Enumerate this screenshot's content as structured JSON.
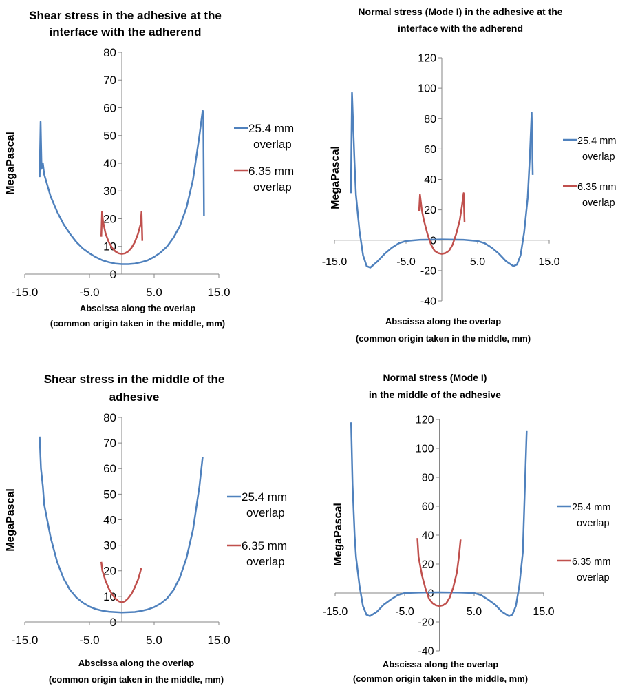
{
  "chart_data": [
    {
      "type": "line",
      "title": [
        "Shear stress  in the adhesive at the",
        "interface with the adherend"
      ],
      "xlabel": [
        "Abscissa along the overlap",
        "(common origin taken in the middle, mm)"
      ],
      "ylabel": "MegaPascal",
      "xlim": [
        -15,
        15
      ],
      "ylim": [
        0,
        80
      ],
      "xticks": [
        "-15.0",
        "-5.0",
        "5.0",
        "15.0"
      ],
      "yticks": [
        "0",
        "10",
        "20",
        "30",
        "40",
        "50",
        "60",
        "70",
        "80"
      ],
      "legend": "right",
      "series": [
        {
          "name": [
            "25.4 mm",
            "overlap"
          ],
          "color": "#4f81bd",
          "points": [
            [
              -12.7,
              35
            ],
            [
              -12.55,
              55
            ],
            [
              -12.4,
              38
            ],
            [
              -12.2,
              40
            ],
            [
              -12.0,
              36
            ],
            [
              -11.0,
              28
            ],
            [
              -10.0,
              22.5
            ],
            [
              -9.0,
              18
            ],
            [
              -8.0,
              14.5
            ],
            [
              -7.0,
              11.5
            ],
            [
              -6.0,
              9.2
            ],
            [
              -5.0,
              7.5
            ],
            [
              -4.0,
              6.1
            ],
            [
              -3.0,
              5.0
            ],
            [
              -2.0,
              4.3
            ],
            [
              -1.0,
              3.8
            ],
            [
              0.0,
              3.6
            ],
            [
              1.0,
              3.6
            ],
            [
              2.0,
              3.8
            ],
            [
              3.0,
              4.3
            ],
            [
              4.0,
              5.0
            ],
            [
              5.0,
              6.2
            ],
            [
              6.0,
              7.8
            ],
            [
              7.0,
              10.0
            ],
            [
              8.0,
              13.2
            ],
            [
              9.0,
              17.5
            ],
            [
              10.0,
              24.0
            ],
            [
              11.0,
              34.0
            ],
            [
              12.0,
              50.0
            ],
            [
              12.5,
              59
            ],
            [
              12.6,
              58
            ],
            [
              12.7,
              21
            ]
          ]
        },
        {
          "name": [
            "6.35 mm",
            "overlap"
          ],
          "color": "#c0504d",
          "points": [
            [
              -3.17,
              13.5
            ],
            [
              -3.05,
              22.5
            ],
            [
              -2.9,
              19
            ],
            [
              -2.5,
              14.5
            ],
            [
              -2.0,
              11.5
            ],
            [
              -1.5,
              9.5
            ],
            [
              -1.0,
              8.2
            ],
            [
              -0.5,
              7.5
            ],
            [
              0.0,
              7.3
            ],
            [
              0.5,
              7.5
            ],
            [
              1.0,
              8.2
            ],
            [
              1.5,
              9.5
            ],
            [
              2.0,
              11.5
            ],
            [
              2.5,
              14.5
            ],
            [
              2.9,
              18
            ],
            [
              3.05,
              22.5
            ],
            [
              3.17,
              12
            ]
          ]
        }
      ]
    },
    {
      "type": "line",
      "title": [
        "Normal stress (Mode I) in the adhesive at the",
        "interface with the adherend"
      ],
      "xlabel": [
        "Abscissa along the overlap",
        "(common origin taken in the middle, mm)"
      ],
      "ylabel": "MegaPascal",
      "xlim": [
        -15,
        15
      ],
      "ylim": [
        -40,
        120
      ],
      "xticks": [
        "-15.0",
        "-5.0",
        "5.0",
        "15.0"
      ],
      "yticks": [
        "-40",
        "-20",
        "0",
        "20",
        "40",
        "60",
        "80",
        "100",
        "120"
      ],
      "legend": "right",
      "series": [
        {
          "name": [
            "25.4 mm",
            "overlap"
          ],
          "color": "#4f81bd",
          "points": [
            [
              -12.7,
              31
            ],
            [
              -12.55,
              97
            ],
            [
              -12.4,
              78
            ],
            [
              -12.2,
              52
            ],
            [
              -12.0,
              30
            ],
            [
              -11.5,
              6
            ],
            [
              -11.0,
              -10
            ],
            [
              -10.5,
              -17
            ],
            [
              -10.0,
              -18
            ],
            [
              -9.0,
              -14
            ],
            [
              -8.0,
              -9
            ],
            [
              -7.0,
              -5
            ],
            [
              -6.0,
              -2
            ],
            [
              -5.0,
              -0.5
            ],
            [
              -3.0,
              0.3
            ],
            [
              0.0,
              0.5
            ],
            [
              3.0,
              0.3
            ],
            [
              5.0,
              -0.5
            ],
            [
              6.0,
              -2
            ],
            [
              7.0,
              -5
            ],
            [
              8.0,
              -9
            ],
            [
              9.0,
              -14
            ],
            [
              10.0,
              -17
            ],
            [
              10.5,
              -16
            ],
            [
              11.0,
              -10
            ],
            [
              11.5,
              5
            ],
            [
              12.0,
              28
            ],
            [
              12.3,
              55
            ],
            [
              12.55,
              84
            ],
            [
              12.7,
              43
            ]
          ]
        },
        {
          "name": [
            "6.35 mm",
            "overlap"
          ],
          "color": "#c0504d",
          "points": [
            [
              -3.17,
              19
            ],
            [
              -3.05,
              30
            ],
            [
              -2.8,
              20
            ],
            [
              -2.5,
              13
            ],
            [
              -2.0,
              4
            ],
            [
              -1.5,
              -3
            ],
            [
              -1.0,
              -7
            ],
            [
              -0.5,
              -8.5
            ],
            [
              0.0,
              -9
            ],
            [
              0.5,
              -8.5
            ],
            [
              1.0,
              -7
            ],
            [
              1.5,
              -3
            ],
            [
              2.0,
              4
            ],
            [
              2.5,
              13
            ],
            [
              2.8,
              22
            ],
            [
              3.05,
              31
            ],
            [
              3.17,
              12
            ]
          ]
        }
      ]
    },
    {
      "type": "line",
      "title": [
        "Shear stress  in the middle of the",
        "adhesive"
      ],
      "xlabel": [
        "Abscissa along the overlap",
        "(common origin taken in the middle, mm)"
      ],
      "ylabel": "MegaPascal",
      "xlim": [
        -15,
        15
      ],
      "ylim": [
        0,
        80
      ],
      "xticks": [
        "-15.0",
        "-5.0",
        "5.0",
        "15.0"
      ],
      "yticks": [
        "0",
        "10",
        "20",
        "30",
        "40",
        "50",
        "60",
        "70",
        "80"
      ],
      "legend": "right",
      "series": [
        {
          "name": [
            "25.4 mm",
            "overlap"
          ],
          "color": "#4f81bd",
          "points": [
            [
              -12.7,
              72.5
            ],
            [
              -12.5,
              60
            ],
            [
              -12.2,
              53
            ],
            [
              -12.0,
              46
            ],
            [
              -11.0,
              33
            ],
            [
              -10.0,
              23.5
            ],
            [
              -9.0,
              17
            ],
            [
              -8.0,
              12.5
            ],
            [
              -7.0,
              9.5
            ],
            [
              -6.0,
              7.5
            ],
            [
              -5.0,
              6.0
            ],
            [
              -4.0,
              5.0
            ],
            [
              -3.0,
              4.4
            ],
            [
              -2.0,
              4.0
            ],
            [
              0.0,
              3.7
            ],
            [
              2.0,
              3.9
            ],
            [
              3.0,
              4.3
            ],
            [
              4.0,
              4.9
            ],
            [
              5.0,
              5.8
            ],
            [
              6.0,
              7.2
            ],
            [
              7.0,
              9.2
            ],
            [
              8.0,
              12.5
            ],
            [
              9.0,
              17.5
            ],
            [
              10.0,
              25
            ],
            [
              11.0,
              36
            ],
            [
              12.0,
              53
            ],
            [
              12.5,
              64.5
            ]
          ]
        },
        {
          "name": [
            "6.35 mm",
            "overlap"
          ],
          "color": "#c0504d",
          "points": [
            [
              -3.17,
              23.5
            ],
            [
              -3.0,
              20
            ],
            [
              -2.5,
              16
            ],
            [
              -2.0,
              13
            ],
            [
              -1.5,
              10.8
            ],
            [
              -1.0,
              9.2
            ],
            [
              -0.5,
              8.1
            ],
            [
              0.0,
              7.6
            ],
            [
              0.5,
              8.1
            ],
            [
              1.0,
              9.3
            ],
            [
              1.5,
              11
            ],
            [
              2.0,
              13.5
            ],
            [
              2.5,
              16.5
            ],
            [
              2.8,
              19
            ],
            [
              3.0,
              21
            ]
          ]
        }
      ]
    },
    {
      "type": "line",
      "title": [
        "Normal stress  (Mode I)",
        "in the middle of the adhesive"
      ],
      "xlabel": [
        "Abscissa along the overlap",
        "(common origin taken in the middle, mm)"
      ],
      "ylabel": "MegaPascal",
      "xlim": [
        -15,
        15
      ],
      "ylim": [
        -40,
        120
      ],
      "xticks": [
        "-15.0",
        "-5.0",
        "5.0",
        "15.0"
      ],
      "yticks": [
        "-40",
        "-20",
        "0",
        "20",
        "40",
        "60",
        "80",
        "100",
        "120"
      ],
      "legend": "right",
      "series": [
        {
          "name": [
            "25.4 mm",
            "overlap"
          ],
          "color": "#4f81bd",
          "points": [
            [
              -12.7,
              118
            ],
            [
              -12.5,
              75
            ],
            [
              -12.2,
              40
            ],
            [
              -12.0,
              25
            ],
            [
              -11.5,
              5
            ],
            [
              -11.0,
              -9
            ],
            [
              -10.5,
              -15
            ],
            [
              -10.0,
              -16
            ],
            [
              -9.0,
              -13
            ],
            [
              -8.0,
              -8
            ],
            [
              -7.0,
              -4.5
            ],
            [
              -6.0,
              -1.5
            ],
            [
              -5.0,
              0
            ],
            [
              -3.0,
              0.3
            ],
            [
              0.0,
              0.5
            ],
            [
              3.0,
              0.3
            ],
            [
              5.0,
              0
            ],
            [
              6.0,
              -1.5
            ],
            [
              7.0,
              -4.5
            ],
            [
              8.0,
              -8
            ],
            [
              9.0,
              -13
            ],
            [
              10.0,
              -16
            ],
            [
              10.5,
              -15
            ],
            [
              11.0,
              -9
            ],
            [
              11.5,
              5
            ],
            [
              12.0,
              28
            ],
            [
              12.3,
              73
            ],
            [
              12.55,
              112
            ]
          ]
        },
        {
          "name": [
            "6.35 mm",
            "overlap"
          ],
          "color": "#c0504d",
          "points": [
            [
              -3.17,
              38
            ],
            [
              -3.0,
              25
            ],
            [
              -2.5,
              12
            ],
            [
              -2.0,
              3
            ],
            [
              -1.5,
              -4
            ],
            [
              -1.0,
              -7
            ],
            [
              -0.5,
              -8.5
            ],
            [
              0.0,
              -9
            ],
            [
              0.5,
              -8.5
            ],
            [
              1.0,
              -7
            ],
            [
              1.5,
              -3
            ],
            [
              2.0,
              4
            ],
            [
              2.5,
              14
            ],
            [
              2.8,
              25
            ],
            [
              3.05,
              37
            ]
          ]
        }
      ]
    }
  ]
}
